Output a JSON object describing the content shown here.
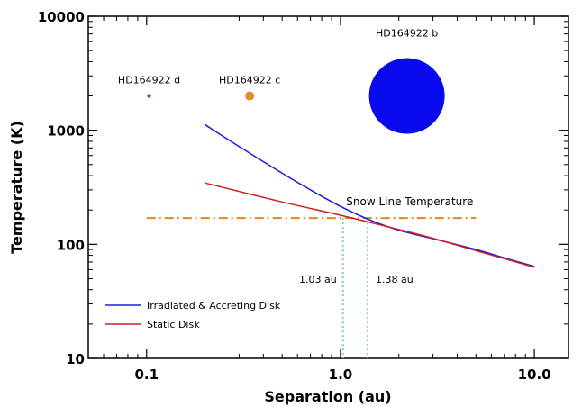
{
  "chart_data": {
    "type": "line",
    "xlabel": "Separation (au)",
    "ylabel": "Temperature (K)",
    "xscale": "log",
    "yscale": "log",
    "xlim": [
      0.05,
      15
    ],
    "ylim": [
      10,
      10000
    ],
    "xticks": [
      0.1,
      1.0,
      10.0
    ],
    "xtick_labels": [
      "0.1",
      "1.0",
      "10.0"
    ],
    "yticks": [
      10,
      100,
      1000,
      10000
    ],
    "ytick_labels": [
      "10",
      "100",
      "1000",
      "10000"
    ],
    "grid": false,
    "legend_position": "bottom-left",
    "series": [
      {
        "name": "Irradiated & Accreting Disk",
        "color": "#1c1cde",
        "x": [
          0.2,
          0.3,
          0.5,
          0.7,
          1.0,
          1.4,
          2.0,
          3.0,
          5.0,
          7.0,
          10.0
        ],
        "y": [
          1120,
          720,
          420,
          300,
          215,
          165,
          133,
          112,
          90,
          76,
          64
        ]
      },
      {
        "name": "Static Disk",
        "color": "#cc2020",
        "x": [
          0.2,
          0.5,
          1.0,
          2.0,
          3.0,
          5.0,
          10.0
        ],
        "y": [
          345,
          235,
          180,
          135,
          113,
          88,
          63
        ]
      }
    ],
    "reference_lines": [
      {
        "label": "Snow Line Temperature",
        "orientation": "horizontal",
        "y": 170,
        "x_range": [
          0.1,
          5.0
        ],
        "color": "#e08a1e",
        "style": "dash-dot"
      },
      {
        "label": "1.03 au",
        "orientation": "vertical",
        "x": 1.03,
        "y_range": [
          10,
          170
        ],
        "color": "#7fc8cf",
        "style": "dotted"
      },
      {
        "label": "1.38 au",
        "orientation": "vertical",
        "x": 1.38,
        "y_range": [
          10,
          170
        ],
        "color": "#7fc8cf",
        "style": "dotted"
      }
    ],
    "planets": [
      {
        "name": "HD164922 d",
        "x": 0.103,
        "y": 2000,
        "color": "#cc2020",
        "relative_size": 0.05
      },
      {
        "name": "HD164922 c",
        "x": 0.34,
        "y": 2000,
        "color": "#ea8a2e",
        "relative_size": 0.12
      },
      {
        "name": "HD164922 b",
        "x": 2.2,
        "y": 2000,
        "color": "#0a0aee",
        "relative_size": 1.0
      }
    ]
  }
}
